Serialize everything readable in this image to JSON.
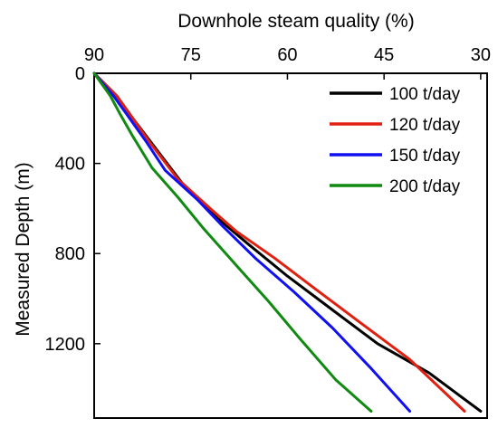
{
  "chart_data": {
    "type": "line",
    "xlabel": "Downhole steam quality (%)",
    "ylabel": "Measured Depth (m)",
    "x_axis_position": "top",
    "x_reversed": true,
    "y_reversed": true,
    "xlim": [
      90,
      29
    ],
    "ylim": [
      0,
      1530
    ],
    "x_ticks": [
      90,
      75,
      60,
      45,
      30
    ],
    "y_ticks": [
      0,
      400,
      800,
      1200
    ],
    "grid": false,
    "legend_position": "top-right",
    "series": [
      {
        "name": "100 t/day",
        "color": "#000000",
        "points": [
          [
            90,
            0
          ],
          [
            86.5,
            100
          ],
          [
            84,
            200
          ],
          [
            80,
            350
          ],
          [
            76,
            500
          ],
          [
            71,
            640
          ],
          [
            66,
            760
          ],
          [
            60,
            900
          ],
          [
            53,
            1050
          ],
          [
            46,
            1200
          ],
          [
            38,
            1330
          ],
          [
            30,
            1500
          ]
        ]
      },
      {
        "name": "120 t/day",
        "color": "#e02010",
        "points": [
          [
            90,
            0
          ],
          [
            86.5,
            100
          ],
          [
            84.5,
            180
          ],
          [
            81,
            320
          ],
          [
            77,
            470
          ],
          [
            72,
            600
          ],
          [
            68,
            700
          ],
          [
            62,
            820
          ],
          [
            56,
            950
          ],
          [
            49,
            1100
          ],
          [
            41,
            1270
          ],
          [
            32.5,
            1500
          ]
        ]
      },
      {
        "name": "150 t/day",
        "color": "#1010f0",
        "points": [
          [
            90,
            0
          ],
          [
            87,
            100
          ],
          [
            85,
            180
          ],
          [
            82,
            300
          ],
          [
            79,
            430
          ],
          [
            74,
            560
          ],
          [
            70,
            680
          ],
          [
            65,
            820
          ],
          [
            59,
            970
          ],
          [
            53,
            1130
          ],
          [
            47,
            1310
          ],
          [
            41,
            1500
          ]
        ]
      },
      {
        "name": "200 t/day",
        "color": "#108a10",
        "points": [
          [
            90,
            0
          ],
          [
            87.5,
            100
          ],
          [
            86,
            180
          ],
          [
            84,
            280
          ],
          [
            81,
            420
          ],
          [
            77,
            550
          ],
          [
            73,
            690
          ],
          [
            68,
            850
          ],
          [
            63,
            1010
          ],
          [
            58,
            1180
          ],
          [
            52.5,
            1360
          ],
          [
            47,
            1500
          ]
        ]
      }
    ]
  }
}
